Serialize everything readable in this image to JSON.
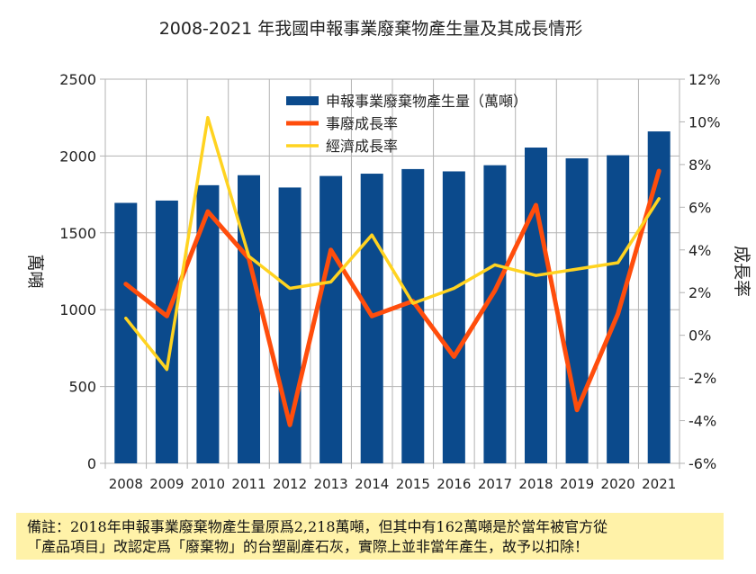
{
  "chart_data": {
    "type": "bar",
    "title": "2008-2021 年我國申報事業廢棄物產生量及其成長情形",
    "xlabel": "",
    "ylabel": "萬噸",
    "y2label": "成長率",
    "categories": [
      "2008",
      "2009",
      "2010",
      "2011",
      "2012",
      "2013",
      "2014",
      "2015",
      "2016",
      "2017",
      "2018",
      "2019",
      "2020",
      "2021"
    ],
    "ylim": [
      0,
      2500
    ],
    "yticks": [
      "0",
      "500",
      "1000",
      "1500",
      "2000",
      "2500"
    ],
    "y2lim": [
      -6,
      12
    ],
    "y2ticks": [
      "-6%",
      "-4%",
      "-2%",
      "0%",
      "2%",
      "4%",
      "6%",
      "8%",
      "10%",
      "12%"
    ],
    "grid": true,
    "legend_position": "top-center",
    "series": [
      {
        "name": "申報事業廢棄物產生量（萬噸）",
        "type": "bar",
        "axis": "left",
        "color": "#0b4a8c",
        "values": [
          1695,
          1710,
          1810,
          1875,
          1795,
          1870,
          1885,
          1915,
          1900,
          1940,
          2055,
          1985,
          2005,
          2160
        ]
      },
      {
        "name": "事廢成長率",
        "type": "line",
        "axis": "right",
        "color": "#ff4d0c",
        "values": [
          2.4,
          0.9,
          5.8,
          3.6,
          -4.2,
          4.0,
          0.9,
          1.6,
          -1.0,
          2.1,
          6.1,
          -3.5,
          1.0,
          7.7
        ]
      },
      {
        "name": "經濟成長率",
        "type": "line",
        "axis": "right",
        "color": "#ffd320",
        "values": [
          0.8,
          -1.6,
          10.2,
          3.7,
          2.2,
          2.5,
          4.7,
          1.5,
          2.2,
          3.3,
          2.8,
          3.1,
          3.4,
          6.4
        ]
      }
    ]
  },
  "note": {
    "line1": "備註：2018年申報事業廢棄物產生量原爲2,218萬噸，但其中有162萬噸是於當年被官方從",
    "line2": "「產品項目」改認定爲「廢棄物」的台塑副產石灰，實際上並非當年產生，故予以扣除！"
  }
}
